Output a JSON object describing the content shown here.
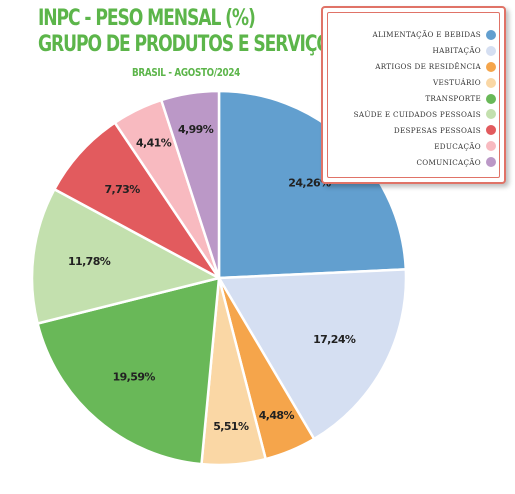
{
  "chart_data": {
    "type": "pie",
    "title_lines": [
      "INPC - PESO MENSAL (%)",
      "GRUPO DE PRODUTOS E SERVIÇOS"
    ],
    "subtitle": "BRASIL - AGOSTO/2024",
    "legend_position": "top-right",
    "slices": [
      {
        "name": "Alimentação e bebidas",
        "value": 24.26,
        "label": "24,26%",
        "color": "#629fcf"
      },
      {
        "name": "Habitação",
        "value": 17.24,
        "label": "17,24%",
        "color": "#d5dff2"
      },
      {
        "name": "Artigos de residência",
        "value": 4.48,
        "label": "4,48%",
        "color": "#f5a54b"
      },
      {
        "name": "Vestuário",
        "value": 5.51,
        "label": "5,51%",
        "color": "#fad7a5"
      },
      {
        "name": "Transporte",
        "value": 19.59,
        "label": "19,59%",
        "color": "#69b858"
      },
      {
        "name": "Saúde e cuidados pessoais",
        "value": 11.78,
        "label": "11,78%",
        "color": "#c3e0ae"
      },
      {
        "name": "Despesas pessoais",
        "value": 7.73,
        "label": "7,73%",
        "color": "#e25b5e"
      },
      {
        "name": "Educação",
        "value": 4.41,
        "label": "4,41%",
        "color": "#f8bac0"
      },
      {
        "name": "Comunicação",
        "value": 4.99,
        "label": "4,99%",
        "color": "#bb98c7"
      }
    ]
  }
}
